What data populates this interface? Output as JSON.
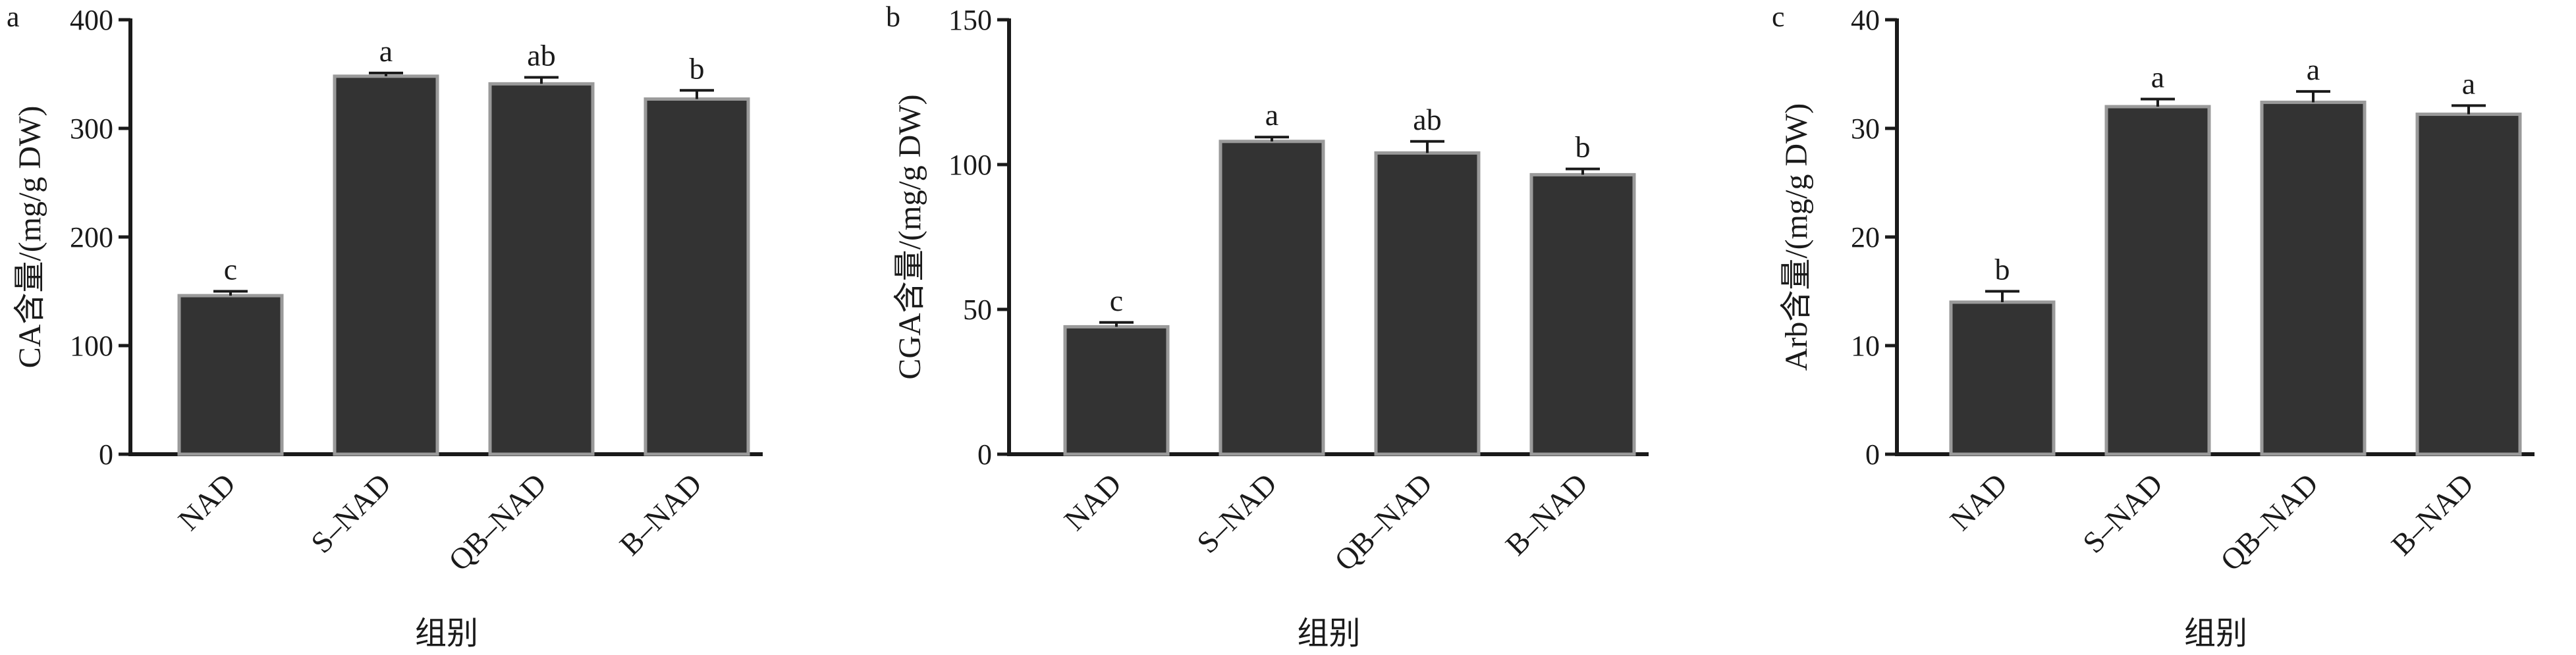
{
  "chart_data": [
    {
      "type": "bar",
      "panel": "a",
      "categories": [
        "NAD",
        "S–NAD",
        "QB–NAD",
        "B–NAD"
      ],
      "values": [
        146,
        348,
        341,
        327
      ],
      "errors": [
        4,
        3,
        6,
        8
      ],
      "significance": [
        "c",
        "a",
        "ab",
        "b"
      ],
      "ylabel": "CA含量/(mg/g DW)",
      "xlabel": "组别",
      "ylim": [
        0,
        400
      ],
      "yticks": [
        0,
        100,
        200,
        300,
        400
      ],
      "ytick_labels": [
        "0",
        "100",
        "200",
        "300",
        "400"
      ]
    },
    {
      "type": "bar",
      "panel": "b",
      "categories": [
        "NAD",
        "S–NAD",
        "QB–NAD",
        "B–NAD"
      ],
      "values": [
        44,
        108,
        104,
        96.5
      ],
      "errors": [
        1.5,
        1.5,
        4,
        2
      ],
      "significance": [
        "c",
        "a",
        "ab",
        "b"
      ],
      "ylabel": "CGA含量/(mg/g DW)",
      "xlabel": "组别",
      "ylim": [
        0,
        150
      ],
      "yticks": [
        0,
        50,
        100,
        150
      ],
      "ytick_labels": [
        "0",
        "50",
        "100",
        "150"
      ]
    },
    {
      "type": "bar",
      "panel": "c",
      "categories": [
        "NAD",
        "S–NAD",
        "QB–NAD",
        "B–NAD"
      ],
      "values": [
        14,
        32,
        32.4,
        31.3
      ],
      "errors": [
        1,
        0.7,
        1,
        0.8
      ],
      "significance": [
        "b",
        "a",
        "a",
        "a"
      ],
      "ylabel": "Arb含量/(mg/g DW)",
      "xlabel": "组别",
      "ylim": [
        0,
        40
      ],
      "yticks": [
        0,
        10,
        20,
        30,
        40
      ],
      "ytick_labels": [
        "0",
        "10",
        "20",
        "30",
        "40"
      ]
    }
  ]
}
